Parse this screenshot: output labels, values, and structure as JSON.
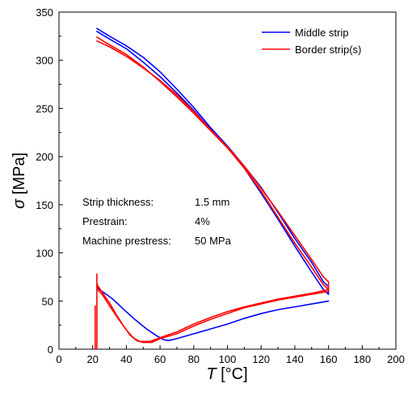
{
  "chart_data": {
    "type": "line",
    "xlabel_symbol": "T",
    "xlabel_unit": " [°C]",
    "ylabel_symbol": "σ",
    "ylabel_unit": " [MPa]",
    "xlim": [
      0,
      200
    ],
    "ylim": [
      0,
      350
    ],
    "xticks": [
      0,
      20,
      40,
      60,
      80,
      100,
      120,
      140,
      160,
      180,
      200
    ],
    "yticks": [
      0,
      50,
      100,
      150,
      200,
      250,
      300,
      350
    ],
    "grid": false,
    "legend_position": "top-right",
    "series": [
      {
        "name": "Middle strip",
        "color": "#0000ff",
        "segments": [
          [
            [
              22.5,
              330
            ],
            [
              30,
              322
            ],
            [
              40,
              312
            ],
            [
              50,
              298
            ],
            [
              60,
              283
            ],
            [
              70,
              266
            ],
            [
              80,
              248
            ],
            [
              90,
              228
            ],
            [
              100,
              210
            ],
            [
              110,
              188
            ],
            [
              120,
              162
            ],
            [
              130,
              135
            ],
            [
              140,
              107
            ],
            [
              150,
              80
            ],
            [
              157,
              62
            ],
            [
              160,
              57
            ],
            [
              160,
              65
            ],
            [
              157,
              70
            ],
            [
              150,
              90
            ],
            [
              140,
              115
            ],
            [
              130,
              142
            ],
            [
              120,
              168
            ],
            [
              110,
              190
            ],
            [
              100,
              211
            ],
            [
              90,
              230
            ],
            [
              80,
              251
            ],
            [
              70,
              270
            ],
            [
              60,
              288
            ],
            [
              50,
              303
            ],
            [
              40,
              315
            ],
            [
              30,
              325
            ],
            [
              22.5,
              333
            ]
          ],
          [
            [
              160,
              50
            ],
            [
              150,
              47
            ],
            [
              140,
              44
            ],
            [
              130,
              41
            ],
            [
              120,
              37
            ],
            [
              110,
              32
            ],
            [
              100,
              26
            ],
            [
              90,
              21
            ],
            [
              80,
              16
            ],
            [
              70,
              11
            ],
            [
              65,
              9
            ],
            [
              62,
              10
            ],
            [
              58,
              14
            ],
            [
              52,
              21
            ],
            [
              45,
              31
            ],
            [
              38,
              42
            ],
            [
              32,
              52
            ],
            [
              28,
              57
            ],
            [
              24,
              62
            ],
            [
              22.5,
              65
            ]
          ]
        ]
      },
      {
        "name": "Border strip(s)",
        "color": "#ff0000",
        "segments": [
          [
            [
              22.5,
              320
            ],
            [
              30,
              314
            ],
            [
              40,
              304
            ],
            [
              50,
              292
            ],
            [
              60,
              279
            ],
            [
              70,
              264
            ],
            [
              80,
              247
            ],
            [
              90,
              228
            ],
            [
              100,
              210
            ],
            [
              110,
              190
            ],
            [
              120,
              167
            ],
            [
              130,
              143
            ],
            [
              140,
              118
            ],
            [
              150,
              93
            ],
            [
              157,
              75
            ],
            [
              160,
              70
            ],
            [
              160,
              62
            ],
            [
              157,
              67
            ],
            [
              150,
              85
            ],
            [
              140,
              110
            ],
            [
              130,
              137
            ],
            [
              120,
              164
            ],
            [
              110,
              188
            ],
            [
              100,
              209
            ],
            [
              90,
              227
            ],
            [
              80,
              245
            ],
            [
              70,
              262
            ],
            [
              60,
              278
            ],
            [
              50,
              293
            ],
            [
              40,
              306
            ],
            [
              30,
              316
            ],
            [
              22.5,
              324
            ]
          ],
          [
            [
              160,
              62
            ],
            [
              150,
              58
            ],
            [
              140,
              55
            ],
            [
              130,
              52
            ],
            [
              120,
              48
            ],
            [
              110,
              44
            ],
            [
              100,
              39
            ],
            [
              90,
              33
            ],
            [
              80,
              26
            ],
            [
              70,
              18
            ],
            [
              60,
              12
            ],
            [
              54,
              8
            ],
            [
              48,
              8
            ],
            [
              44,
              12
            ],
            [
              40,
              20
            ],
            [
              35,
              32
            ],
            [
              30,
              45
            ],
            [
              26,
              56
            ],
            [
              23,
              62
            ],
            [
              22.5,
              65
            ]
          ],
          [
            [
              160,
              60
            ],
            [
              150,
              57
            ],
            [
              140,
              54
            ],
            [
              130,
              51
            ],
            [
              120,
              47
            ],
            [
              110,
              43
            ],
            [
              100,
              37
            ],
            [
              90,
              31
            ],
            [
              80,
              24
            ],
            [
              70,
              16
            ],
            [
              60,
              11
            ],
            [
              55,
              7
            ],
            [
              50,
              7
            ],
            [
              46,
              9
            ],
            [
              42,
              15
            ],
            [
              38,
              25
            ],
            [
              34,
              36
            ],
            [
              30,
              48
            ],
            [
              26,
              58
            ],
            [
              23,
              66
            ],
            [
              22.5,
              68
            ]
          ],
          [
            [
              22.5,
              78
            ],
            [
              22.5,
              0
            ]
          ],
          [
            [
              21.5,
              45
            ],
            [
              21.5,
              0
            ]
          ]
        ]
      }
    ],
    "annotations": [
      {
        "label": "Strip thickness:",
        "value": "1.5 mm"
      },
      {
        "label": "Prestrain:",
        "value": "4%"
      },
      {
        "label": "Machine prestress:",
        "value": "50 MPa"
      }
    ]
  }
}
